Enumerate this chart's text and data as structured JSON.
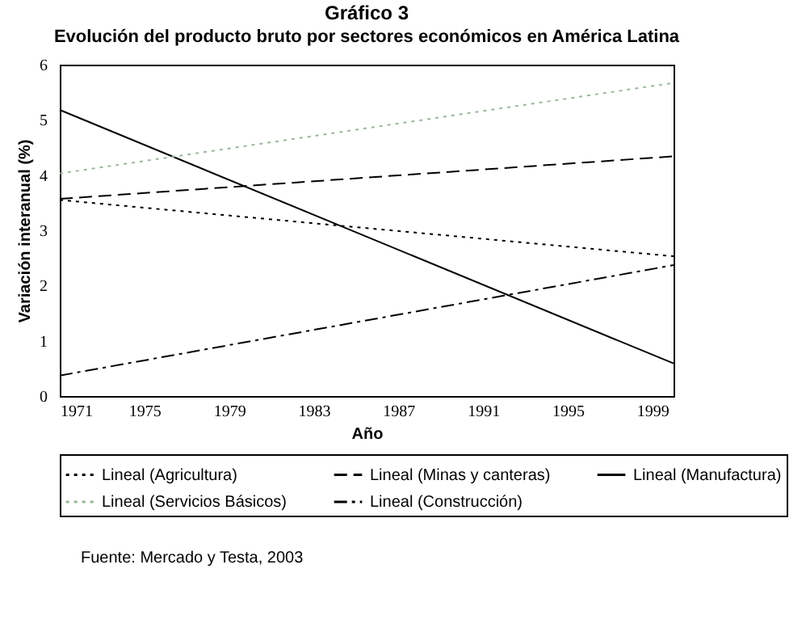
{
  "chart_data": {
    "type": "line",
    "title": "Gráfico 3",
    "subtitle": "Evolución del producto bruto por sectores económicos en América Latina",
    "xlabel": "Año",
    "ylabel": "Variación interanual (%)",
    "x": [
      1971,
      2000
    ],
    "xlim": [
      1971,
      2000
    ],
    "xticks": [
      1971,
      1975,
      1979,
      1983,
      1987,
      1991,
      1995,
      1999
    ],
    "ylim": [
      0,
      6
    ],
    "yticks": [
      0,
      1,
      2,
      3,
      4,
      5,
      6
    ],
    "grid": false,
    "legend": "bottom",
    "marker": "none",
    "series": [
      {
        "name": "Lineal (Agricultura)",
        "color": "#000000",
        "line_style": "dotted",
        "values": [
          3.55,
          2.53
        ]
      },
      {
        "name": "Lineal (Minas y canteras)",
        "color": "#000000",
        "line_style": "dashed",
        "values": [
          3.57,
          4.34
        ]
      },
      {
        "name": "Lineal (Manufactura)",
        "color": "#000000",
        "line_style": "solid",
        "values": [
          5.18,
          0.59
        ]
      },
      {
        "name": "Lineal (Servicios Básicos)",
        "color": "#9ab89a",
        "line_style": "dotted",
        "values": [
          4.03,
          5.67
        ]
      },
      {
        "name": "Lineal (Construcción)",
        "color": "#000000",
        "line_style": "dashdot",
        "values": [
          0.37,
          2.37
        ]
      }
    ],
    "annotations": [
      "Fuente: Mercado y Testa, 2003"
    ]
  }
}
